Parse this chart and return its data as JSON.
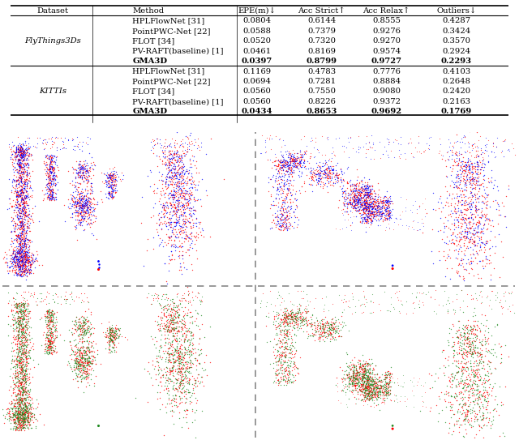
{
  "table": {
    "col_headers": [
      "Dataset",
      "Method",
      "EPE(m)↓",
      "Acc Strict↑",
      "Acc Relax↑",
      "Outliers↓"
    ],
    "flyings_rows": [
      [
        "HPLFlowNet [31]",
        "0.0804",
        "0.6144",
        "0.8555",
        "0.4287"
      ],
      [
        "PointPWC-Net [22]",
        "0.0588",
        "0.7379",
        "0.9276",
        "0.3424"
      ],
      [
        "FLOT [34]",
        "0.0520",
        "0.7320",
        "0.9270",
        "0.3570"
      ],
      [
        "PV-RAFT(baseline) [1]",
        "0.0461",
        "0.8169",
        "0.9574",
        "0.2924"
      ],
      [
        "GMA3D",
        "0.0397",
        "0.8799",
        "0.9727",
        "0.2293"
      ]
    ],
    "kittis_rows": [
      [
        "HPLFlowNet [31]",
        "0.1169",
        "0.4783",
        "0.7776",
        "0.4103"
      ],
      [
        "PointPWC-Net [22]",
        "0.0694",
        "0.7281",
        "0.8884",
        "0.2648"
      ],
      [
        "FLOT [34]",
        "0.0560",
        "0.7550",
        "0.9080",
        "0.2420"
      ],
      [
        "PV-RAFT(baseline) [1]",
        "0.0560",
        "0.8226",
        "0.9372",
        "0.2163"
      ],
      [
        "GMA3D",
        "0.0434",
        "0.8653",
        "0.9692",
        "0.1769"
      ]
    ],
    "dataset_labels": [
      "FlyThings3Ds",
      "KITTIs"
    ]
  }
}
